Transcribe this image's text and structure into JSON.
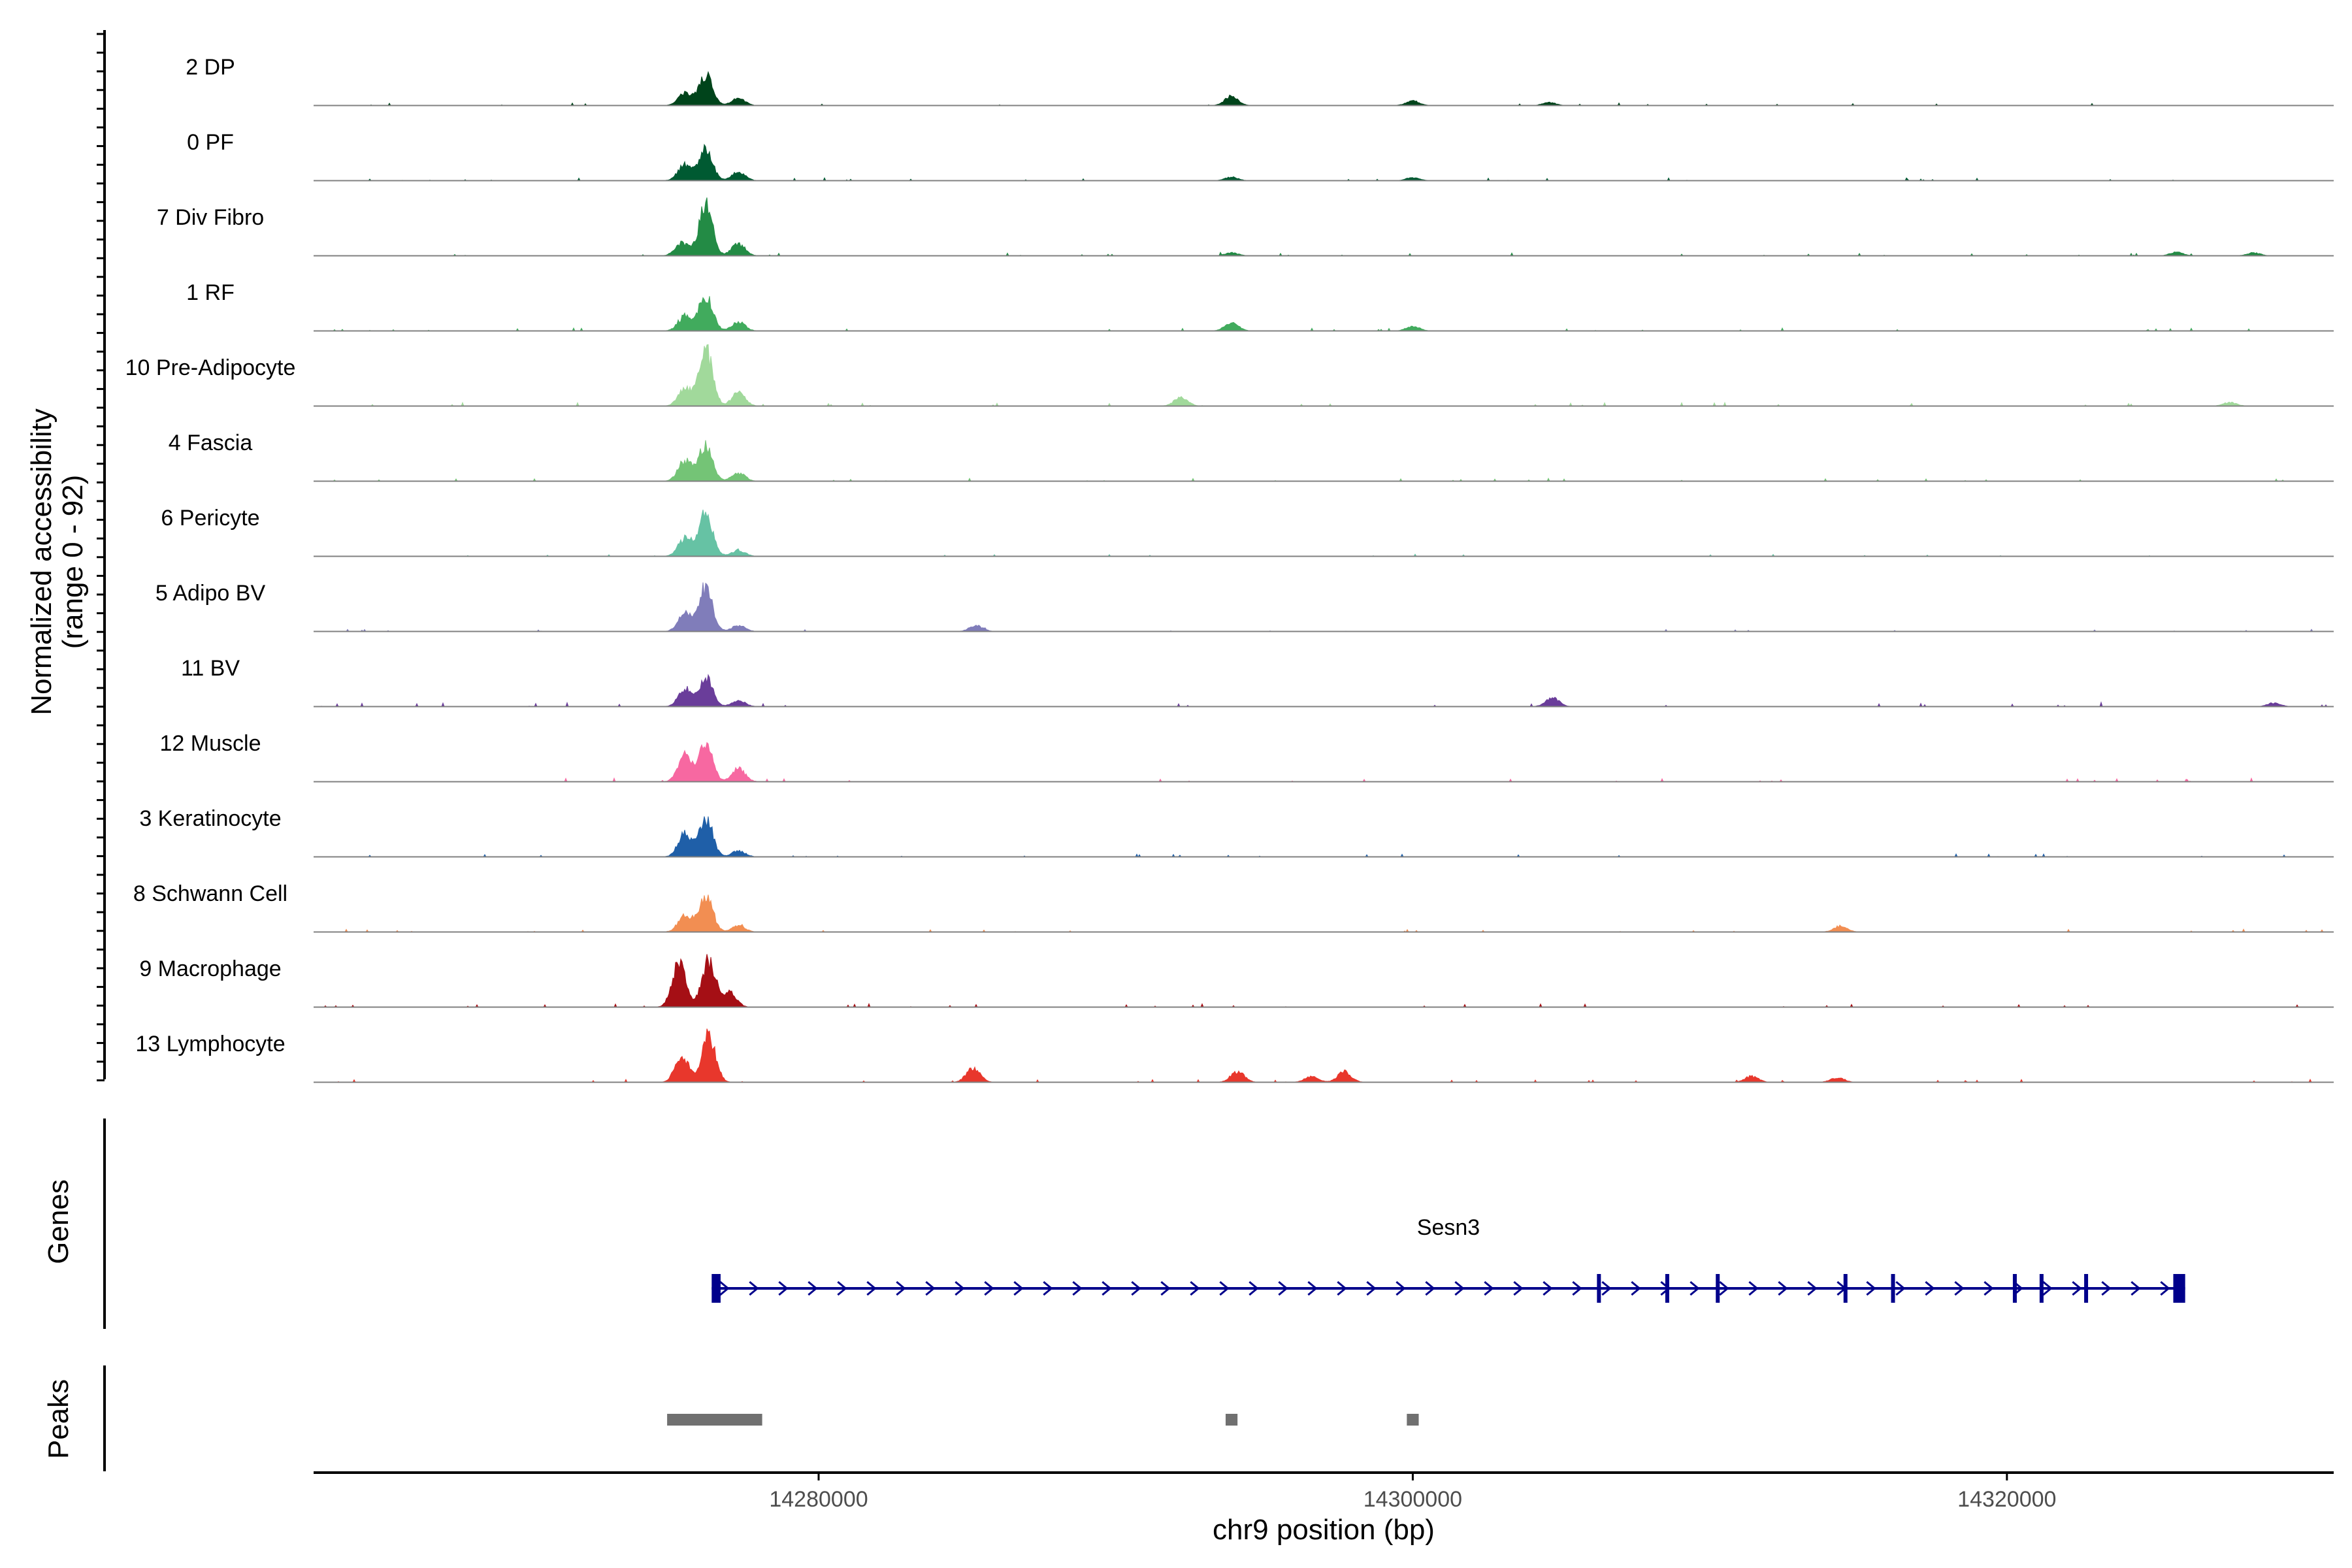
{
  "chart_data": {
    "type": "area",
    "title": "",
    "y_axis_label_line1": "Normalized accessibility",
    "y_axis_label_line2": "(range 0 - 92)",
    "ylim": [
      0,
      92
    ],
    "xlabel": "chr9 position (bp)",
    "xlim": [
      14263000,
      14331000
    ],
    "x_ticks": [
      {
        "value": 14280000,
        "label": "14280000"
      },
      {
        "value": 14300000,
        "label": "14300000"
      },
      {
        "value": 14320000,
        "label": "14320000"
      }
    ],
    "tracks": [
      {
        "label": "2 DP",
        "color": "#00441b",
        "peaks": [
          {
            "x": 14275500,
            "h": 0.22
          },
          {
            "x": 14276200,
            "h": 0.52
          },
          {
            "x": 14277300,
            "h": 0.12
          },
          {
            "x": 14293900,
            "h": 0.16
          },
          {
            "x": 14300000,
            "h": 0.08
          },
          {
            "x": 14304600,
            "h": 0.05
          }
        ],
        "noise": 0.04
      },
      {
        "label": "0 PF",
        "color": "#005a32",
        "peaks": [
          {
            "x": 14275500,
            "h": 0.28
          },
          {
            "x": 14276200,
            "h": 0.52
          },
          {
            "x": 14277300,
            "h": 0.15
          },
          {
            "x": 14293900,
            "h": 0.06
          },
          {
            "x": 14300000,
            "h": 0.05
          }
        ],
        "noise": 0.04
      },
      {
        "label": "7 Div Fibro",
        "color": "#238b45",
        "peaks": [
          {
            "x": 14275400,
            "h": 0.22
          },
          {
            "x": 14276200,
            "h": 0.85
          },
          {
            "x": 14277300,
            "h": 0.2
          },
          {
            "x": 14293900,
            "h": 0.05
          },
          {
            "x": 14325700,
            "h": 0.06
          },
          {
            "x": 14328300,
            "h": 0.05
          }
        ],
        "noise": 0.04
      },
      {
        "label": "1 RF",
        "color": "#41ab5d",
        "peaks": [
          {
            "x": 14275500,
            "h": 0.25
          },
          {
            "x": 14276200,
            "h": 0.6
          },
          {
            "x": 14277300,
            "h": 0.15
          },
          {
            "x": 14293900,
            "h": 0.14
          },
          {
            "x": 14300000,
            "h": 0.08
          }
        ],
        "noise": 0.04
      },
      {
        "label": "10 Pre-Adipocyte",
        "color": "#a1d99b",
        "peaks": [
          {
            "x": 14275500,
            "h": 0.3
          },
          {
            "x": 14276200,
            "h": 0.95
          },
          {
            "x": 14277300,
            "h": 0.22
          },
          {
            "x": 14292200,
            "h": 0.15
          },
          {
            "x": 14327500,
            "h": 0.06
          }
        ],
        "noise": 0.05
      },
      {
        "label": "4 Fascia",
        "color": "#74c476",
        "peaks": [
          {
            "x": 14275500,
            "h": 0.35
          },
          {
            "x": 14276200,
            "h": 0.62
          },
          {
            "x": 14277300,
            "h": 0.14
          }
        ],
        "noise": 0.04
      },
      {
        "label": "6 Pericyte",
        "color": "#66c2a4",
        "peaks": [
          {
            "x": 14275500,
            "h": 0.3
          },
          {
            "x": 14276200,
            "h": 0.72
          },
          {
            "x": 14277300,
            "h": 0.1
          }
        ],
        "noise": 0.03
      },
      {
        "label": "5 Adipo BV",
        "color": "#807dba",
        "peaks": [
          {
            "x": 14275500,
            "h": 0.3
          },
          {
            "x": 14276200,
            "h": 0.75
          },
          {
            "x": 14277300,
            "h": 0.1
          },
          {
            "x": 14285300,
            "h": 0.1
          }
        ],
        "noise": 0.03
      },
      {
        "label": "11 BV",
        "color": "#6a3d9a",
        "peaks": [
          {
            "x": 14275500,
            "h": 0.3
          },
          {
            "x": 14276200,
            "h": 0.5
          },
          {
            "x": 14277300,
            "h": 0.1
          },
          {
            "x": 14304700,
            "h": 0.15
          },
          {
            "x": 14329000,
            "h": 0.06
          }
        ],
        "noise": 0.06
      },
      {
        "label": "12 Muscle",
        "color": "#f768a1",
        "peaks": [
          {
            "x": 14275500,
            "h": 0.45
          },
          {
            "x": 14276200,
            "h": 0.62
          },
          {
            "x": 14277300,
            "h": 0.22
          }
        ],
        "noise": 0.05
      },
      {
        "label": "3 Keratinocyte",
        "color": "#1f5fa8",
        "peaks": [
          {
            "x": 14275500,
            "h": 0.4
          },
          {
            "x": 14276200,
            "h": 0.65
          },
          {
            "x": 14277300,
            "h": 0.1
          }
        ],
        "noise": 0.04
      },
      {
        "label": "8 Schwann Cell",
        "color": "#f28e52",
        "peaks": [
          {
            "x": 14275500,
            "h": 0.28
          },
          {
            "x": 14276200,
            "h": 0.65
          },
          {
            "x": 14277300,
            "h": 0.1
          },
          {
            "x": 14314400,
            "h": 0.1
          }
        ],
        "noise": 0.04
      },
      {
        "label": "9 Macrophage",
        "color": "#a50f15",
        "peaks": [
          {
            "x": 14275300,
            "h": 0.75
          },
          {
            "x": 14276300,
            "h": 0.8
          },
          {
            "x": 14277000,
            "h": 0.25
          }
        ],
        "noise": 0.05
      },
      {
        "label": "13 Lymphocyte",
        "color": "#e8372c",
        "peaks": [
          {
            "x": 14275400,
            "h": 0.45
          },
          {
            "x": 14276300,
            "h": 0.8
          },
          {
            "x": 14285200,
            "h": 0.25
          },
          {
            "x": 14294100,
            "h": 0.18
          },
          {
            "x": 14296600,
            "h": 0.1
          },
          {
            "x": 14297700,
            "h": 0.18
          },
          {
            "x": 14314300,
            "h": 0.08
          },
          {
            "x": 14311400,
            "h": 0.1
          }
        ],
        "noise": 0.04
      }
    ],
    "genes": {
      "label": "Genes",
      "name": "Sesn3",
      "color": "#00008b",
      "start": 14276400,
      "end": 14326000,
      "exons": [
        {
          "start": 14276400,
          "end": 14276700
        },
        {
          "start": 14306200,
          "end": 14306250
        },
        {
          "start": 14308500,
          "end": 14308600
        },
        {
          "start": 14310200,
          "end": 14310300
        },
        {
          "start": 14314500,
          "end": 14314600
        },
        {
          "start": 14316100,
          "end": 14316200
        },
        {
          "start": 14320200,
          "end": 14320250
        },
        {
          "start": 14321100,
          "end": 14321200
        },
        {
          "start": 14322600,
          "end": 14322700
        },
        {
          "start": 14325600,
          "end": 14326000
        }
      ]
    },
    "peaks_track": {
      "label": "Peaks",
      "color": "#707070",
      "regions": [
        {
          "start": 14274900,
          "end": 14278100
        },
        {
          "start": 14293700,
          "end": 14294100
        },
        {
          "start": 14299800,
          "end": 14300200
        }
      ]
    }
  }
}
